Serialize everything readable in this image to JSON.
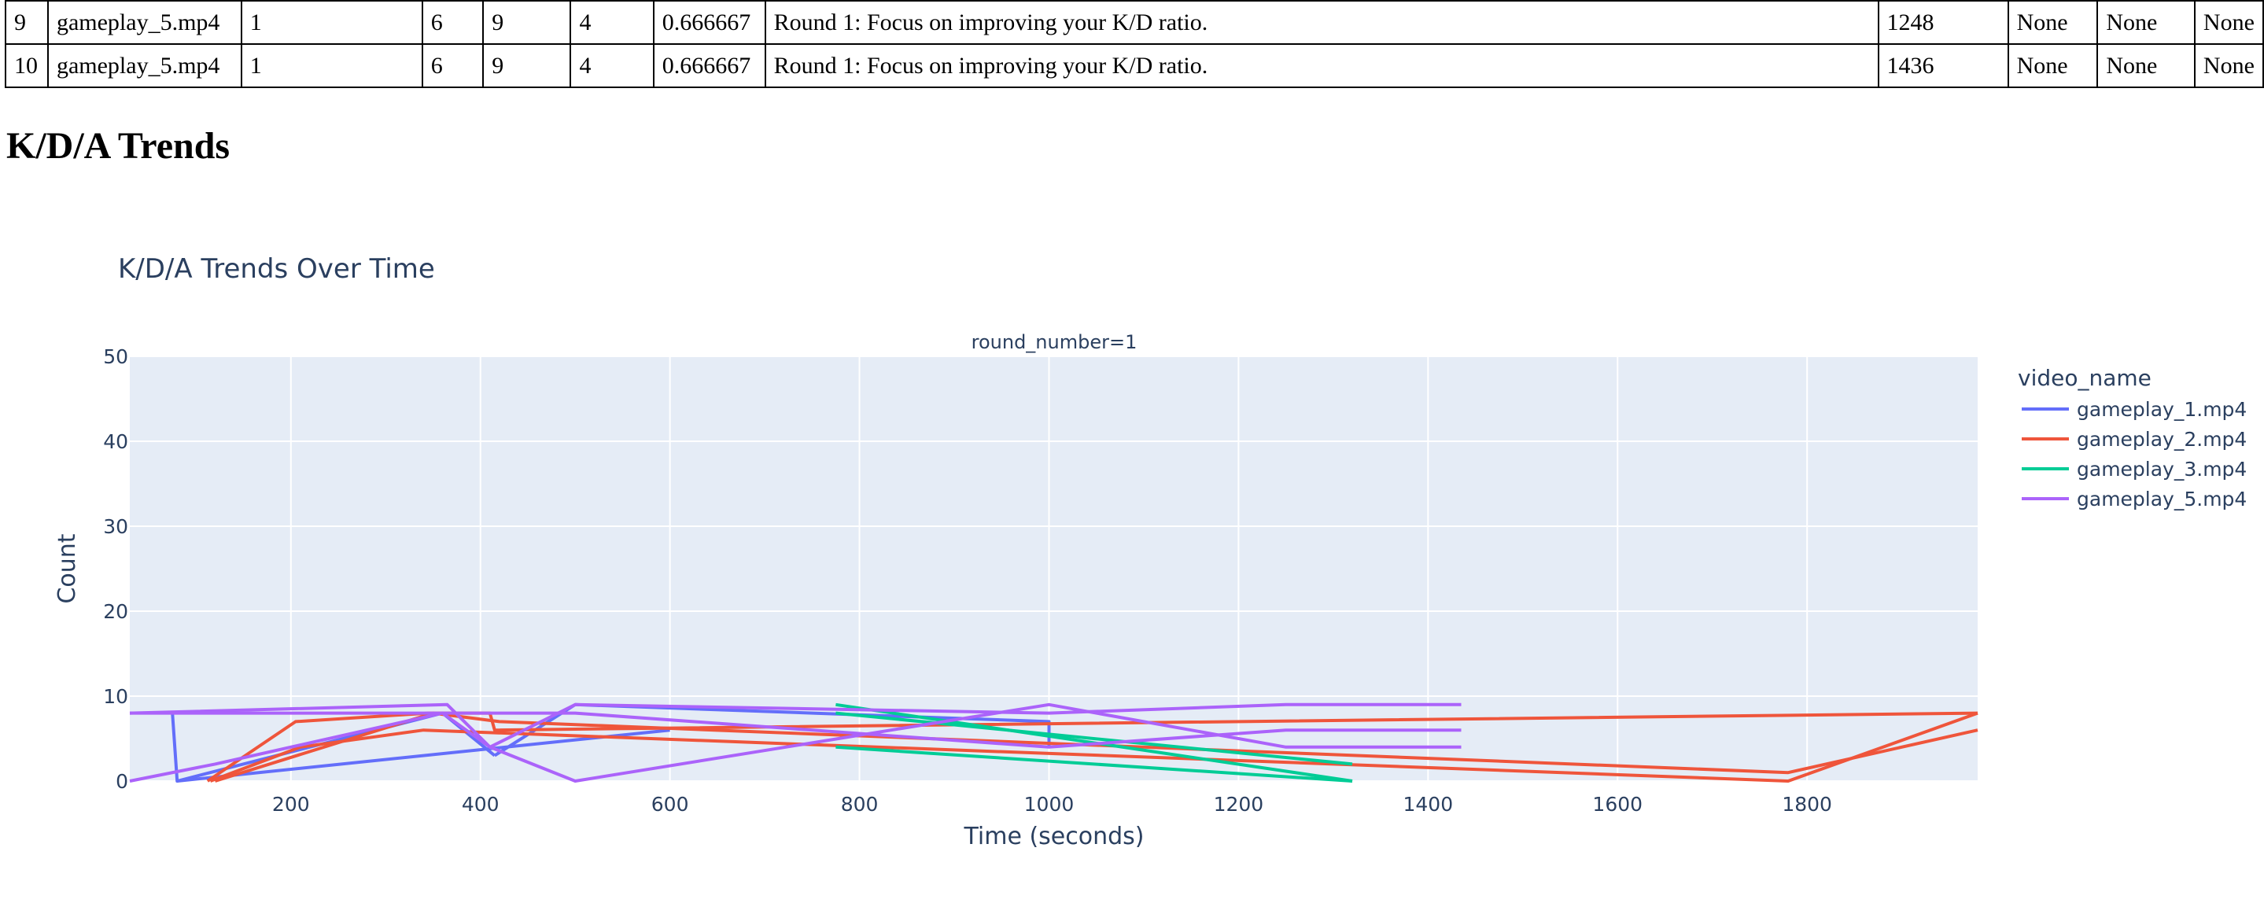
{
  "table": {
    "rows": [
      [
        "9",
        "gameplay_5.mp4",
        "1",
        "6",
        "9",
        "4",
        "0.666667",
        "Round 1: Focus on improving your K/D ratio.",
        "1248",
        "None",
        "None",
        "None"
      ],
      [
        "10",
        "gameplay_5.mp4",
        "1",
        "6",
        "9",
        "4",
        "0.666667",
        "Round 1: Focus on improving your K/D ratio.",
        "1436",
        "None",
        "None",
        "None"
      ]
    ]
  },
  "section_heading": "K/D/A Trends",
  "chart_data": {
    "type": "line",
    "title": "K/D/A Trends Over Time",
    "facet_label": "round_number=1",
    "xlabel": "Time (seconds)",
    "ylabel": "Count",
    "xlim": [
      30,
      1980
    ],
    "ylim": [
      0,
      50
    ],
    "x_ticks": [
      200,
      400,
      600,
      800,
      1000,
      1200,
      1400,
      1600,
      1800
    ],
    "y_ticks": [
      0,
      10,
      20,
      30,
      40,
      50
    ],
    "grid": true,
    "legend_title": "video_name",
    "legend_position": "right",
    "series": [
      {
        "name": "gameplay_1.mp4",
        "color": "#636efa",
        "lines": [
          [
            [
              75,
              8
            ],
            [
              80,
              0
            ],
            [
              600,
              6
            ]
          ],
          [
            [
              80,
              0
            ],
            [
              360,
              8
            ],
            [
              415,
              3
            ]
          ],
          [
            [
              415,
              3
            ],
            [
              500,
              9
            ],
            [
              1000,
              7
            ],
            [
              1000,
              4
            ]
          ]
        ]
      },
      {
        "name": "gameplay_2.mp4",
        "color": "#ef553b",
        "lines": [
          [
            [
              112,
              0
            ],
            [
              205,
              7
            ],
            [
              345,
              8
            ],
            [
              410,
              8
            ],
            [
              415,
              6
            ],
            [
              1980,
              8
            ]
          ],
          [
            [
              115,
              0
            ],
            [
              210,
              4
            ],
            [
              340,
              6
            ],
            [
              1780,
              0
            ],
            [
              1980,
              8
            ]
          ],
          [
            [
              120,
              0
            ],
            [
              350,
              8
            ],
            [
              420,
              7
            ],
            [
              1780,
              1
            ],
            [
              1980,
              6
            ]
          ]
        ]
      },
      {
        "name": "gameplay_3.mp4",
        "color": "#00cc96",
        "lines": [
          [
            [
              775,
              9
            ],
            [
              1320,
              0
            ]
          ],
          [
            [
              775,
              4
            ],
            [
              1320,
              0
            ]
          ],
          [
            [
              775,
              8
            ],
            [
              1320,
              2
            ]
          ]
        ]
      },
      {
        "name": "gameplay_5.mp4",
        "color": "#ab63fa",
        "lines": [
          [
            [
              30,
              8
            ],
            [
              365,
              9
            ],
            [
              410,
              4
            ],
            [
              500,
              9
            ],
            [
              1000,
              8
            ],
            [
              1250,
              9
            ],
            [
              1435,
              9
            ]
          ],
          [
            [
              30,
              0
            ],
            [
              120,
              2
            ],
            [
              360,
              8
            ],
            [
              410,
              4
            ],
            [
              500,
              0
            ],
            [
              1000,
              9
            ],
            [
              1250,
              4
            ],
            [
              1435,
              4
            ]
          ],
          [
            [
              30,
              8
            ],
            [
              500,
              8
            ],
            [
              1000,
              4
            ],
            [
              1250,
              6
            ],
            [
              1435,
              6
            ]
          ]
        ]
      }
    ]
  }
}
